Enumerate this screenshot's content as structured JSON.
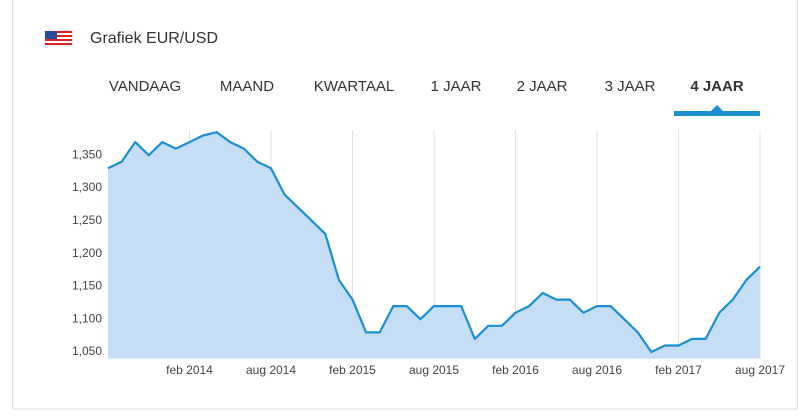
{
  "header": {
    "title": "Grafiek EUR/USD"
  },
  "tabs": [
    "VANDAAG",
    "MAAND",
    "KWARTAAL",
    "1 JAAR",
    "2 JAAR",
    "3 JAAR",
    "4 JAAR"
  ],
  "active_tab": 6,
  "chart_data": {
    "type": "area",
    "color": "#1a8fd2",
    "fill": "#c6ddf6",
    "grid": true,
    "x": [
      "2013-08",
      "2013-09",
      "2013-10",
      "2013-11",
      "2013-12",
      "2014-01",
      "2014-02",
      "2014-03",
      "2014-04",
      "2014-05",
      "2014-06",
      "2014-07",
      "2014-08",
      "2014-09",
      "2014-10",
      "2014-11",
      "2014-12",
      "2015-01",
      "2015-02",
      "2015-03",
      "2015-04",
      "2015-05",
      "2015-06",
      "2015-07",
      "2015-08",
      "2015-09",
      "2015-10",
      "2015-11",
      "2015-12",
      "2016-01",
      "2016-02",
      "2016-03",
      "2016-04",
      "2016-05",
      "2016-06",
      "2016-07",
      "2016-08",
      "2016-09",
      "2016-10",
      "2016-11",
      "2016-12",
      "2017-01",
      "2017-02",
      "2017-03",
      "2017-04",
      "2017-05",
      "2017-06",
      "2017-07",
      "2017-08"
    ],
    "values": [
      1.33,
      1.34,
      1.37,
      1.35,
      1.37,
      1.36,
      1.37,
      1.38,
      1.385,
      1.37,
      1.36,
      1.34,
      1.33,
      1.29,
      1.27,
      1.25,
      1.23,
      1.16,
      1.13,
      1.08,
      1.08,
      1.12,
      1.12,
      1.1,
      1.12,
      1.12,
      1.12,
      1.07,
      1.09,
      1.09,
      1.11,
      1.12,
      1.14,
      1.13,
      1.13,
      1.11,
      1.12,
      1.12,
      1.1,
      1.08,
      1.05,
      1.06,
      1.06,
      1.07,
      1.07,
      1.11,
      1.13,
      1.16,
      1.18
    ],
    "xlim": [
      "2013-08",
      "2017-08"
    ],
    "xticks": [
      {
        "value": "2014-02",
        "label": "feb 2014"
      },
      {
        "value": "2014-08",
        "label": "aug 2014"
      },
      {
        "value": "2015-02",
        "label": "feb 2015"
      },
      {
        "value": "2015-08",
        "label": "aug 2015"
      },
      {
        "value": "2016-02",
        "label": "feb 2016"
      },
      {
        "value": "2016-08",
        "label": "aug 2016"
      },
      {
        "value": "2017-02",
        "label": "feb 2017"
      },
      {
        "value": "2017-08",
        "label": "aug 2017"
      }
    ],
    "ylim": [
      1.04,
      1.4
    ],
    "yticks": [
      {
        "value": 1.05,
        "label": "1,050"
      },
      {
        "value": 1.1,
        "label": "1,100"
      },
      {
        "value": 1.15,
        "label": "1,150"
      },
      {
        "value": 1.2,
        "label": "1,200"
      },
      {
        "value": 1.25,
        "label": "1,250"
      },
      {
        "value": 1.3,
        "label": "1,300"
      },
      {
        "value": 1.35,
        "label": "1,350"
      }
    ]
  }
}
